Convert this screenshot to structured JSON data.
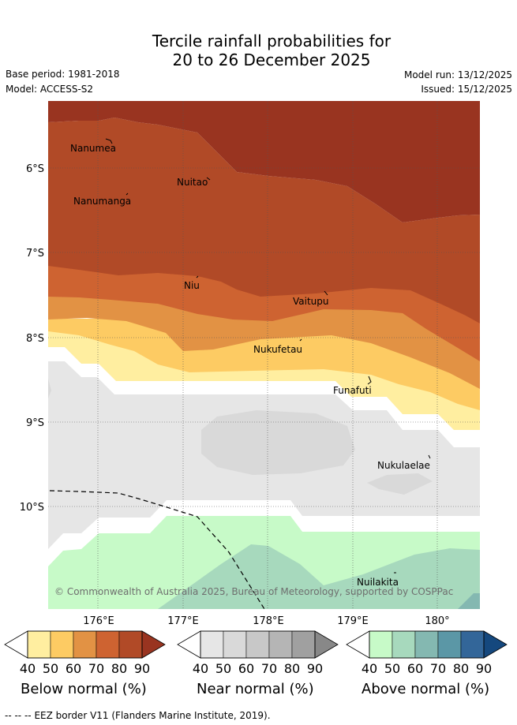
{
  "title": {
    "line1": "Tercile rainfall probabilities for",
    "line2": "20 to 26 December 2025"
  },
  "meta": {
    "base_period": "Base period: 1981-2018",
    "model": "Model: ACCESS-S2",
    "model_run": "Model run: 13/12/2025",
    "issued": "Issued: 15/12/2025"
  },
  "map": {
    "lat_labels": [
      "6°S",
      "7°S",
      "8°S",
      "9°S",
      "10°S"
    ],
    "lon_labels": [
      "176°E",
      "177°E",
      "178°E",
      "179°E",
      "180°"
    ],
    "places": [
      "Nanumea",
      "Nuitao",
      "Nanumanga",
      "Niu",
      "Vaitupu",
      "Nukufetau",
      "Funafuti",
      "Nukulaelae",
      "Nuilakita"
    ],
    "copyright": "© Commonwealth of Australia 2025, Bureau of Meteorology, supported by COSPPac"
  },
  "colorbars": {
    "ticks": [
      "40",
      "50",
      "60",
      "70",
      "80",
      "90"
    ],
    "below": {
      "label": "Below normal (%)",
      "colors": [
        "#ffeea0",
        "#fdcb63",
        "#e29244",
        "#ce6331",
        "#b14a27",
        "#993420"
      ]
    },
    "near": {
      "label": "Near normal (%)",
      "colors": [
        "#e6e6e6",
        "#d9d9d9",
        "#c8c8c8",
        "#b5b5b5",
        "#a0a0a0",
        "#888888"
      ]
    },
    "above": {
      "label": "Above normal (%)",
      "colors": [
        "#c7fac8",
        "#a7d9bd",
        "#84b8b1",
        "#5b97a6",
        "#336699",
        "#15487e"
      ]
    }
  },
  "footer": {
    "legend_symbol": "-- -- --",
    "eez_text": "EEZ border V11 (Flanders Marine Institute, 2019)."
  }
}
